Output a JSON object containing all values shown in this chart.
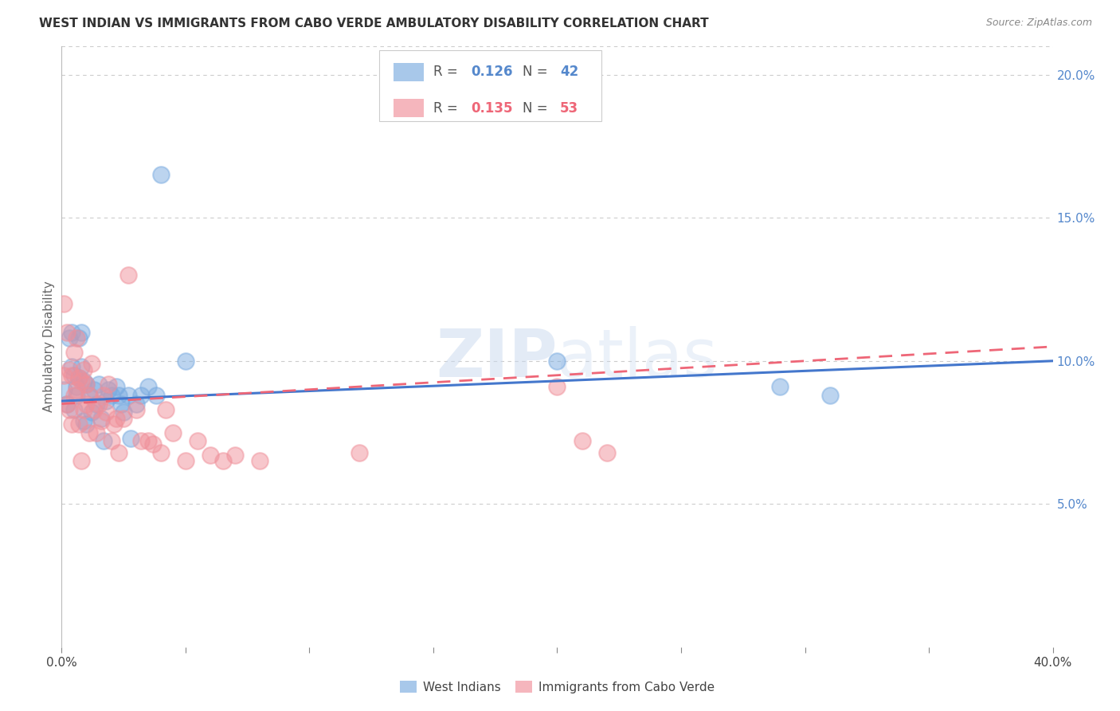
{
  "title": "WEST INDIAN VS IMMIGRANTS FROM CABO VERDE AMBULATORY DISABILITY CORRELATION CHART",
  "source": "Source: ZipAtlas.com",
  "ylabel": "Ambulatory Disability",
  "xlim": [
    0.0,
    0.4
  ],
  "ylim": [
    0.0,
    0.21
  ],
  "grid_color": "#cccccc",
  "background_color": "#ffffff",
  "legend_R1": "0.126",
  "legend_N1": "42",
  "legend_R2": "0.135",
  "legend_N2": "53",
  "blue_color": "#7aabe0",
  "pink_color": "#f0909a",
  "blue_line_color": "#4477cc",
  "pink_line_color": "#ee6677",
  "blue_label": "West Indians",
  "pink_label": "Immigrants from Cabo Verde",
  "west_indian_x": [
    0.001,
    0.002,
    0.003,
    0.004,
    0.004,
    0.005,
    0.005,
    0.006,
    0.006,
    0.007,
    0.007,
    0.008,
    0.008,
    0.009,
    0.009,
    0.01,
    0.01,
    0.011,
    0.012,
    0.013,
    0.014,
    0.015,
    0.016,
    0.017,
    0.018,
    0.019,
    0.02,
    0.022,
    0.023,
    0.024,
    0.025,
    0.027,
    0.028,
    0.03,
    0.032,
    0.035,
    0.038,
    0.04,
    0.05,
    0.2,
    0.29,
    0.31
  ],
  "west_indian_y": [
    0.09,
    0.085,
    0.108,
    0.11,
    0.098,
    0.083,
    0.095,
    0.091,
    0.088,
    0.094,
    0.108,
    0.11,
    0.098,
    0.079,
    0.093,
    0.092,
    0.078,
    0.088,
    0.082,
    0.09,
    0.085,
    0.092,
    0.08,
    0.072,
    0.086,
    0.09,
    0.088,
    0.091,
    0.088,
    0.085,
    0.082,
    0.088,
    0.073,
    0.085,
    0.088,
    0.091,
    0.088,
    0.165,
    0.1,
    0.1,
    0.091,
    0.088
  ],
  "cabo_verde_x": [
    0.001,
    0.001,
    0.002,
    0.002,
    0.003,
    0.003,
    0.004,
    0.004,
    0.005,
    0.005,
    0.006,
    0.006,
    0.007,
    0.007,
    0.008,
    0.008,
    0.009,
    0.009,
    0.01,
    0.01,
    0.011,
    0.011,
    0.012,
    0.013,
    0.014,
    0.015,
    0.016,
    0.017,
    0.018,
    0.019,
    0.02,
    0.021,
    0.022,
    0.023,
    0.025,
    0.027,
    0.03,
    0.032,
    0.035,
    0.037,
    0.04,
    0.042,
    0.045,
    0.05,
    0.055,
    0.06,
    0.07,
    0.08,
    0.2,
    0.21,
    0.22,
    0.12,
    0.065
  ],
  "cabo_verde_y": [
    0.12,
    0.095,
    0.11,
    0.085,
    0.097,
    0.083,
    0.095,
    0.078,
    0.103,
    0.088,
    0.108,
    0.09,
    0.094,
    0.078,
    0.093,
    0.065,
    0.097,
    0.083,
    0.085,
    0.092,
    0.075,
    0.088,
    0.099,
    0.083,
    0.075,
    0.085,
    0.079,
    0.088,
    0.082,
    0.092,
    0.072,
    0.078,
    0.08,
    0.068,
    0.08,
    0.13,
    0.083,
    0.072,
    0.072,
    0.071,
    0.068,
    0.083,
    0.075,
    0.065,
    0.072,
    0.067,
    0.067,
    0.065,
    0.091,
    0.072,
    0.068,
    0.068,
    0.065
  ],
  "wi_trendline_x0": 0.0,
  "wi_trendline_y0": 0.086,
  "wi_trendline_x1": 0.4,
  "wi_trendline_y1": 0.1,
  "cv_trendline_x0": 0.0,
  "cv_trendline_y0": 0.085,
  "cv_trendline_x1": 0.4,
  "cv_trendline_y1": 0.105
}
